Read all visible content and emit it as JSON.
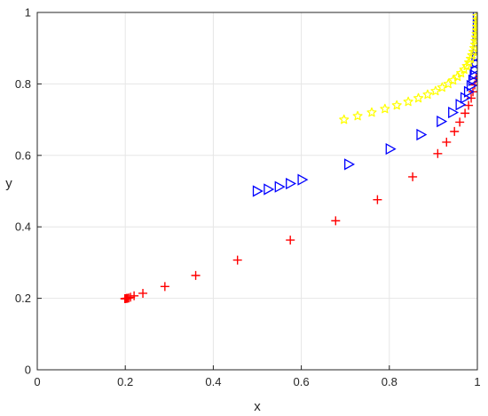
{
  "chart_data": {
    "type": "scatter",
    "title": "",
    "xlabel": "x",
    "ylabel": "y",
    "xlim": [
      0,
      1
    ],
    "ylim": [
      0,
      1
    ],
    "grid": true,
    "xticks": [
      0,
      0.2,
      0.4,
      0.6,
      0.8,
      1
    ],
    "yticks": [
      0,
      0.2,
      0.4,
      0.6,
      0.8,
      1
    ],
    "xtick_labels": [
      "0",
      "0.2",
      "0.4",
      "0.6",
      "0.8",
      "1"
    ],
    "ytick_labels": [
      "0",
      "0.2",
      "0.4",
      "0.6",
      "0.8",
      "1"
    ],
    "series": [
      {
        "marker": "plus",
        "color": "#ff0000",
        "x": [
          0.199,
          0.2,
          0.201,
          0.203,
          0.205,
          0.208,
          0.212,
          0.22,
          0.24,
          0.29,
          0.36,
          0.455,
          0.575,
          0.678,
          0.773,
          0.853,
          0.91,
          0.93,
          0.948,
          0.96,
          0.972,
          0.98,
          0.986,
          0.99,
          0.994,
          0.997
        ],
        "y": [
          0.199,
          0.199,
          0.199,
          0.2,
          0.2,
          0.201,
          0.203,
          0.207,
          0.214,
          0.233,
          0.264,
          0.307,
          0.363,
          0.417,
          0.476,
          0.54,
          0.605,
          0.637,
          0.667,
          0.693,
          0.718,
          0.74,
          0.76,
          0.778,
          0.797,
          0.815
        ]
      },
      {
        "marker": "triangle-right",
        "color": "#0000ff",
        "x": [
          0.5,
          0.525,
          0.55,
          0.575,
          0.602,
          0.708,
          0.802,
          0.872,
          0.918,
          0.944,
          0.961,
          0.972,
          0.98,
          0.986,
          0.99,
          0.993,
          0.995,
          0.997,
          0.998,
          0.999,
          0.9995,
          1.0,
          1.0,
          1.0
        ],
        "y": [
          0.5,
          0.505,
          0.512,
          0.521,
          0.532,
          0.575,
          0.618,
          0.658,
          0.695,
          0.72,
          0.742,
          0.761,
          0.778,
          0.795,
          0.81,
          0.825,
          0.84,
          0.858,
          0.876,
          0.895,
          0.915,
          0.935,
          0.96,
          0.99
        ]
      },
      {
        "marker": "star",
        "color": "#ffff00",
        "x": [
          0.697,
          0.728,
          0.76,
          0.79,
          0.817,
          0.843,
          0.866,
          0.887,
          0.905,
          0.92,
          0.934,
          0.945,
          0.955,
          0.963,
          0.97,
          0.976,
          0.981,
          0.985,
          0.988,
          0.991,
          0.993,
          0.995,
          0.996,
          0.997,
          0.998,
          0.999,
          0.999,
          1.0,
          1.0,
          1.0
        ],
        "y": [
          0.7,
          0.71,
          0.72,
          0.73,
          0.74,
          0.75,
          0.76,
          0.77,
          0.78,
          0.79,
          0.8,
          0.81,
          0.82,
          0.83,
          0.84,
          0.85,
          0.86,
          0.87,
          0.88,
          0.89,
          0.9,
          0.91,
          0.92,
          0.93,
          0.94,
          0.95,
          0.96,
          0.97,
          0.98,
          0.99
        ]
      }
    ]
  }
}
